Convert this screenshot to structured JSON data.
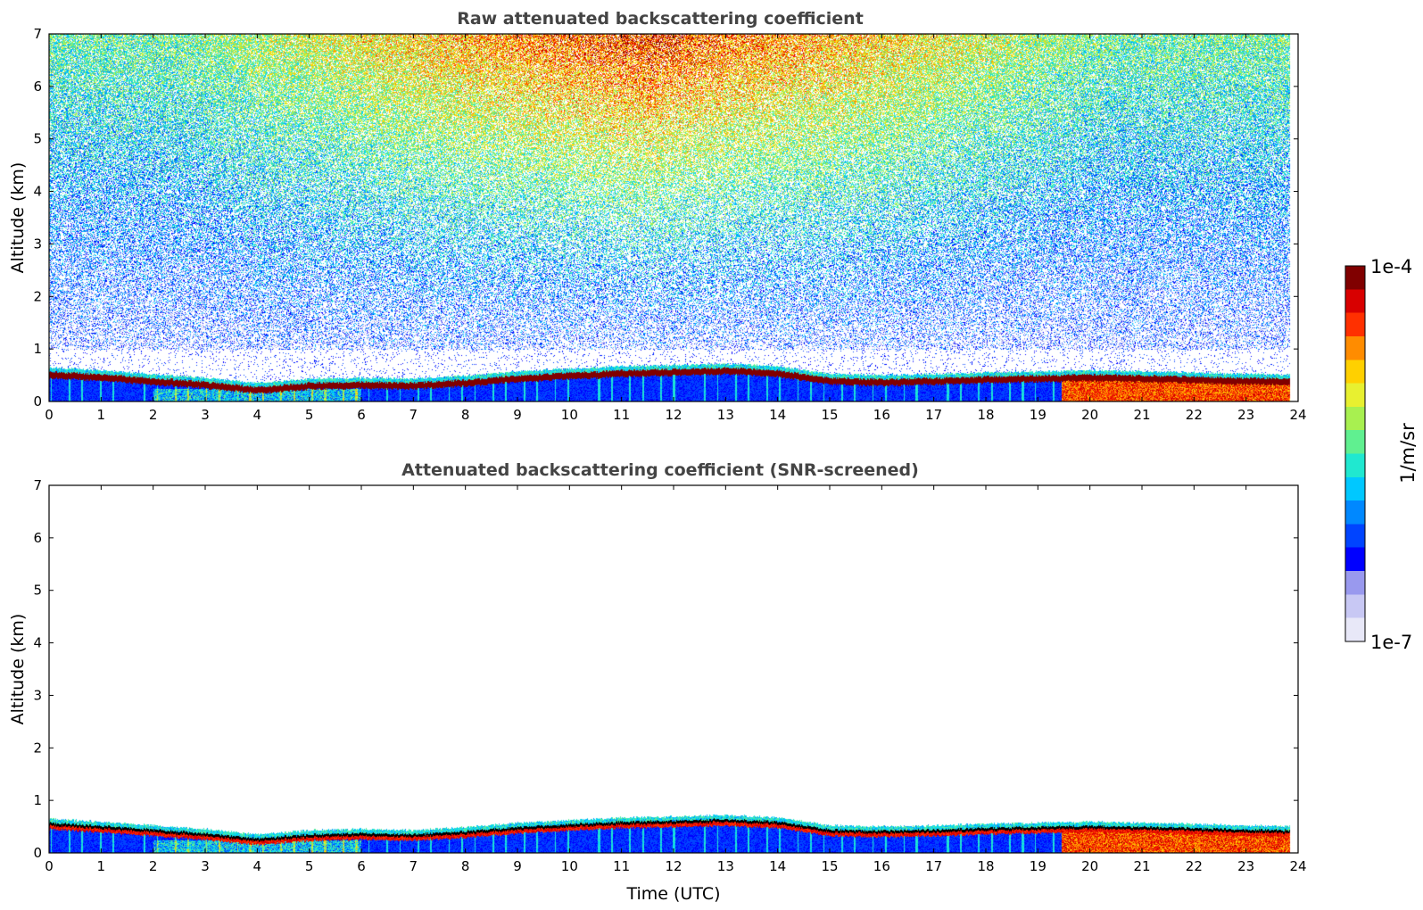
{
  "colors": {
    "colormap": [
      "#e8e8f8",
      "#c8c8f4",
      "#9999ee",
      "#0000ff",
      "#0044ff",
      "#0088ff",
      "#00c8ff",
      "#20e8d0",
      "#60f090",
      "#a8f050",
      "#e8f030",
      "#ffd000",
      "#ff8c00",
      "#ff3000",
      "#d80000",
      "#800000"
    ],
    "snr_overlay": "#000000"
  },
  "chart_data": [
    {
      "type": "heatmap",
      "title": "Raw attenuated backscattering coefficient",
      "ylabel": "Altitude (km)",
      "xlabel": "",
      "xlim": [
        0,
        24
      ],
      "ylim": [
        0,
        7
      ],
      "xticks": [
        "0",
        "1",
        "2",
        "3",
        "4",
        "5",
        "6",
        "7",
        "8",
        "9",
        "10",
        "11",
        "12",
        "13",
        "14",
        "15",
        "16",
        "17",
        "18",
        "19",
        "20",
        "21",
        "22",
        "23",
        "24"
      ],
      "yticks": [
        "0",
        "1",
        "2",
        "3",
        "4",
        "5",
        "6",
        "7"
      ],
      "layer_top_km": [
        [
          0,
          0.58
        ],
        [
          1,
          0.52
        ],
        [
          2,
          0.45
        ],
        [
          3,
          0.38
        ],
        [
          4,
          0.28
        ],
        [
          5,
          0.36
        ],
        [
          6,
          0.38
        ],
        [
          7,
          0.36
        ],
        [
          8,
          0.42
        ],
        [
          9,
          0.5
        ],
        [
          10,
          0.55
        ],
        [
          11,
          0.6
        ],
        [
          12,
          0.62
        ],
        [
          13,
          0.65
        ],
        [
          14,
          0.6
        ],
        [
          15,
          0.45
        ],
        [
          16,
          0.43
        ],
        [
          17,
          0.45
        ],
        [
          18,
          0.48
        ],
        [
          19,
          0.5
        ],
        [
          20,
          0.52
        ],
        [
          21,
          0.5
        ],
        [
          22,
          0.48
        ],
        [
          23,
          0.45
        ],
        [
          23.85,
          0.44
        ]
      ],
      "data_end_hour": 23.85,
      "regime_change_hour": 19.45,
      "noise_max_hour": 11.5
    },
    {
      "type": "heatmap",
      "title": "Attenuated backscattering coefficient (SNR-screened)",
      "ylabel": "Altitude (km)",
      "xlabel": "Time (UTC)",
      "xlim": [
        0,
        24
      ],
      "ylim": [
        0,
        7
      ],
      "xticks": [
        "0",
        "1",
        "2",
        "3",
        "4",
        "5",
        "6",
        "7",
        "8",
        "9",
        "10",
        "11",
        "12",
        "13",
        "14",
        "15",
        "16",
        "17",
        "18",
        "19",
        "20",
        "21",
        "22",
        "23",
        "24"
      ],
      "yticks": [
        "0",
        "1",
        "2",
        "3",
        "4",
        "5",
        "6",
        "7"
      ],
      "layer_top_km": [
        [
          0,
          0.58
        ],
        [
          1,
          0.52
        ],
        [
          2,
          0.45
        ],
        [
          3,
          0.38
        ],
        [
          4,
          0.28
        ],
        [
          5,
          0.36
        ],
        [
          6,
          0.38
        ],
        [
          7,
          0.36
        ],
        [
          8,
          0.42
        ],
        [
          9,
          0.5
        ],
        [
          10,
          0.55
        ],
        [
          11,
          0.6
        ],
        [
          12,
          0.62
        ],
        [
          13,
          0.65
        ],
        [
          14,
          0.6
        ],
        [
          15,
          0.45
        ],
        [
          16,
          0.43
        ],
        [
          17,
          0.45
        ],
        [
          18,
          0.48
        ],
        [
          19,
          0.5
        ],
        [
          20,
          0.52
        ],
        [
          21,
          0.5
        ],
        [
          22,
          0.48
        ],
        [
          23,
          0.45
        ],
        [
          23.85,
          0.44
        ]
      ],
      "data_end_hour": 23.85,
      "regime_change_hour": 19.45
    }
  ],
  "colorbar": {
    "label": "1/m/sr",
    "max_label": "1e-4",
    "min_label": "1e-7",
    "scale": "log",
    "range": [
      1e-07,
      0.0001
    ]
  }
}
